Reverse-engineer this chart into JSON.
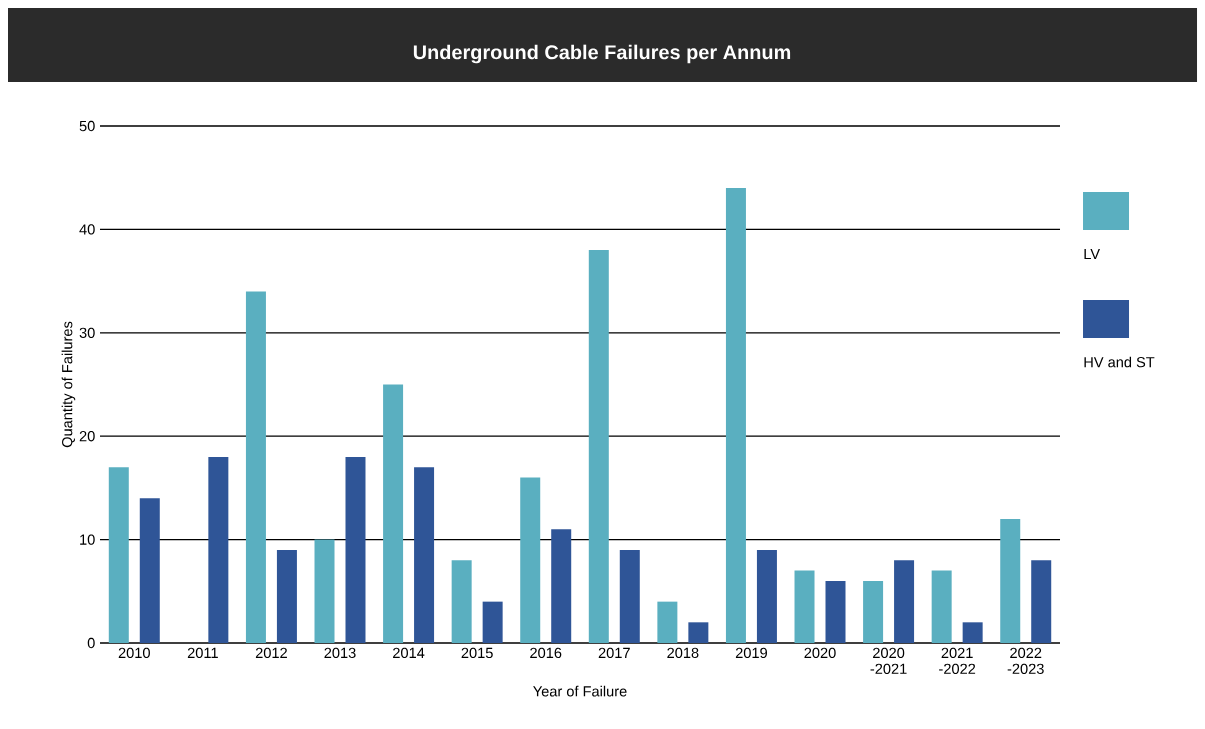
{
  "chart_data": {
    "type": "bar",
    "title": "Underground Cable Failures per Annum",
    "xlabel": "Year of Failure",
    "ylabel": "Quantity of Failures",
    "categories": [
      "2010",
      "2011",
      "2012",
      "2013",
      "2014",
      "2015",
      "2016",
      "2017",
      "2018",
      "2019",
      "2020",
      "2020 -2021",
      "2021 -2022",
      "2022 -2023"
    ],
    "series": [
      {
        "name": "LV",
        "color": "#5aafc0",
        "values": [
          17,
          0,
          34,
          10,
          25,
          8,
          16,
          38,
          4,
          44,
          7,
          6,
          7,
          12
        ]
      },
      {
        "name": "HV and ST",
        "color": "#2f5597",
        "values": [
          14,
          18,
          9,
          18,
          17,
          4,
          11,
          9,
          2,
          9,
          6,
          8,
          2,
          8
        ]
      }
    ],
    "ylim": [
      0,
      50
    ],
    "yticks": [
      0,
      10,
      20,
      30,
      40,
      50
    ],
    "grid": "y",
    "legend": "right"
  }
}
